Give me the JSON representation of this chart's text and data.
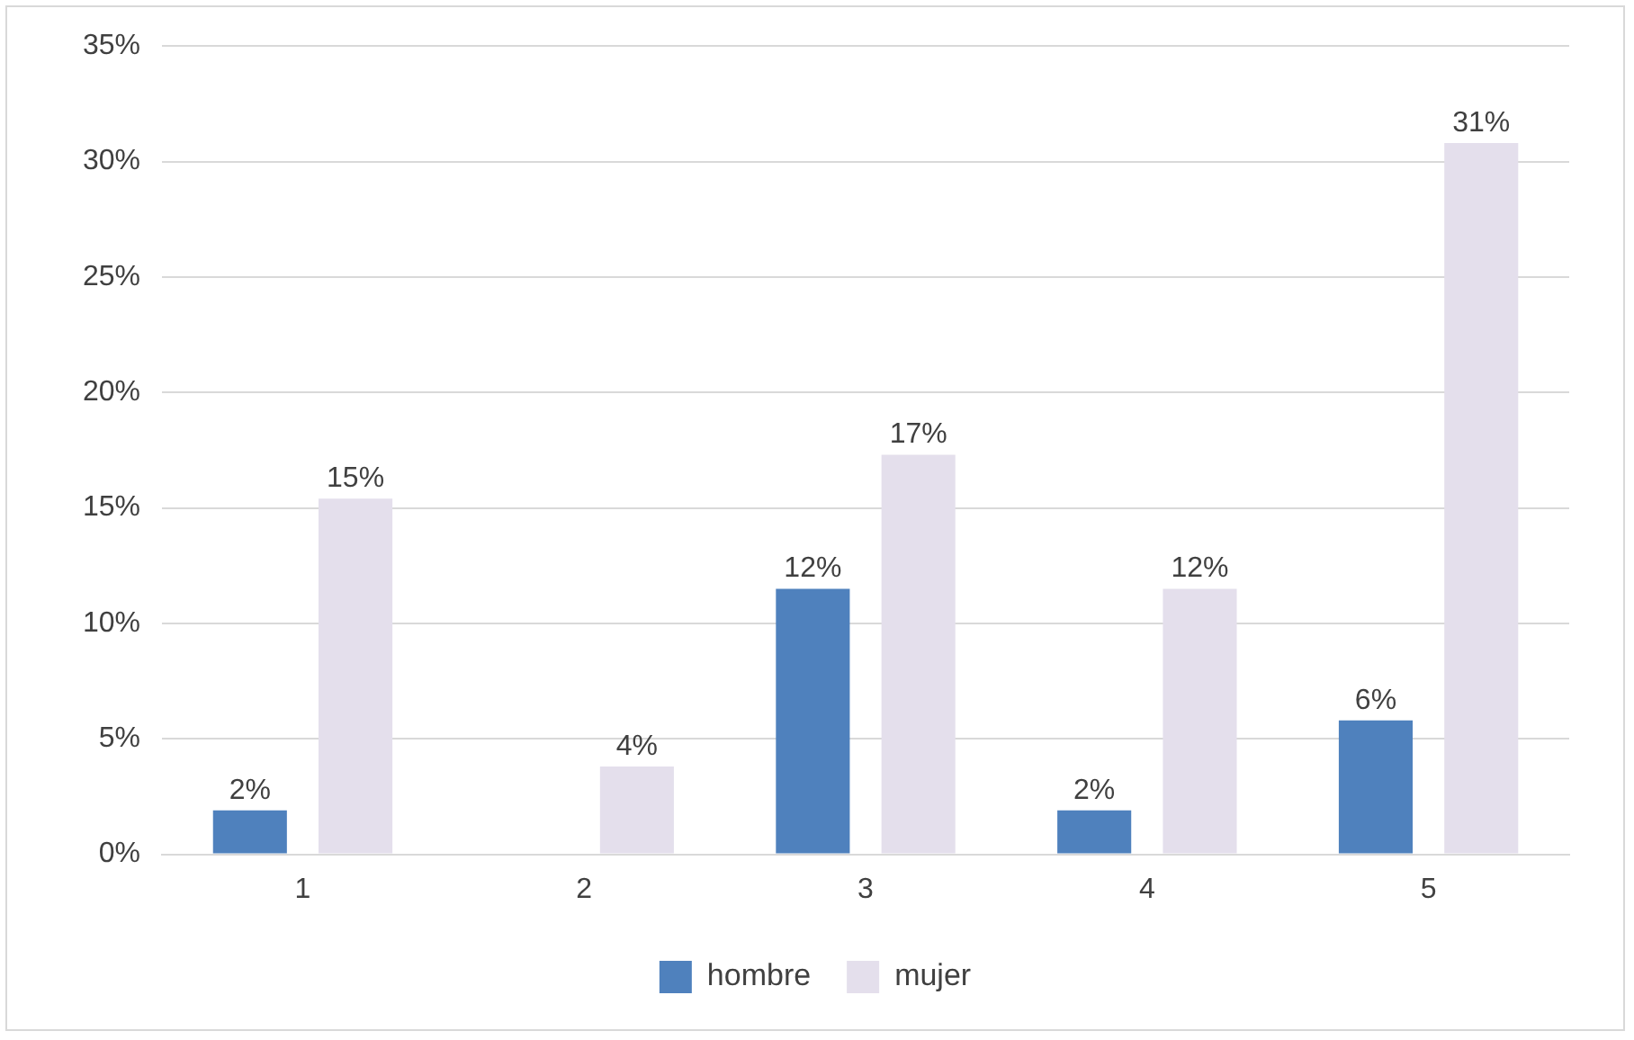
{
  "chart_data": {
    "type": "bar",
    "categories": [
      "1",
      "2",
      "3",
      "4",
      "5"
    ],
    "series": [
      {
        "name": "hombre",
        "color": "#4f81bd",
        "values": [
          1.9,
          0,
          11.5,
          1.9,
          5.8
        ],
        "value_labels": [
          "2%",
          null,
          "12%",
          "2%",
          "6%"
        ]
      },
      {
        "name": "mujer",
        "color": "#e4dfec",
        "values": [
          15.4,
          3.8,
          17.3,
          11.5,
          30.8
        ],
        "value_labels": [
          "15%",
          "4%",
          "17%",
          "12%",
          "31%"
        ]
      }
    ],
    "ylim": [
      0,
      35
    ],
    "yticks": [
      {
        "value": 0,
        "label": "0%"
      },
      {
        "value": 5,
        "label": "5%"
      },
      {
        "value": 10,
        "label": "10%"
      },
      {
        "value": 15,
        "label": "15%"
      },
      {
        "value": 20,
        "label": "20%"
      },
      {
        "value": 25,
        "label": "25%"
      },
      {
        "value": 30,
        "label": "30%"
      },
      {
        "value": 35,
        "label": "35%"
      }
    ],
    "grid": "y",
    "legend": "bottom"
  }
}
